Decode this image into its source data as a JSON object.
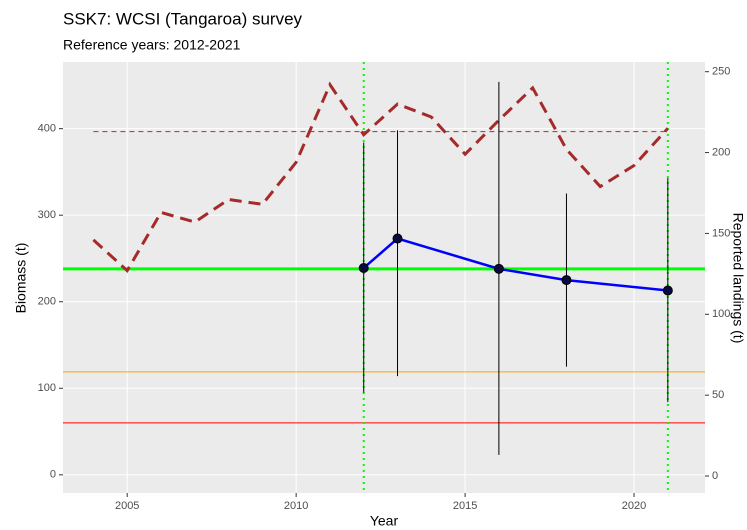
{
  "chart_data": {
    "type": "line",
    "title": "SSK7: WCSI (Tangaroa) survey",
    "subtitle": "Reference years: 2012-2021",
    "x_label": "Year",
    "y_label": "Biomass (t)",
    "y2_label": "Reported landings (t)",
    "xlim": [
      2003.1,
      2022.1
    ],
    "xticks": [
      2005,
      2010,
      2015,
      2020
    ],
    "ylim": [
      -21,
      477
    ],
    "yticks": [
      0,
      100,
      200,
      300,
      400
    ],
    "y2lim": [
      -10.5,
      256
    ],
    "y2ticks": [
      0,
      50,
      100,
      150,
      200,
      250
    ],
    "grid": true,
    "background": "#ebebeb",
    "series": [
      {
        "color": "#a52a2a",
        "dashed": true,
        "axis": "y2",
        "x": [
          2004,
          2005,
          2006,
          2007,
          2008,
          2009,
          2010,
          2011,
          2012,
          2013,
          2014,
          2015,
          2016,
          2017,
          2018,
          2019,
          2020,
          2021
        ],
        "values": [
          146,
          127,
          163,
          157,
          171,
          168,
          194,
          242,
          211,
          230,
          222,
          199,
          220,
          240,
          202,
          179,
          192,
          215
        ]
      },
      {
        "color": "#0000ff",
        "markers": true,
        "x": [
          2012,
          2013,
          2016,
          2018,
          2021
        ],
        "values": [
          239,
          273,
          238,
          225,
          213
        ],
        "lower": [
          95,
          114,
          23,
          125,
          84
        ],
        "upper": [
          384,
          398,
          454,
          325,
          343
        ]
      }
    ],
    "hlines": [
      {
        "value": 238,
        "color": "#00ff00",
        "width": 3
      },
      {
        "value": 119,
        "color": "#ffa500",
        "width": 1
      },
      {
        "value": 60,
        "color": "#ff0000",
        "width": 1
      },
      {
        "value": 213,
        "axis": "y2",
        "color": "#e03030",
        "width": 1.2,
        "dashed": true,
        "xrange": [
          2004,
          2021
        ]
      }
    ],
    "vlines": [
      {
        "value": 2012,
        "color": "#00ff00"
      },
      {
        "value": 2021,
        "color": "#00ff00"
      }
    ]
  }
}
